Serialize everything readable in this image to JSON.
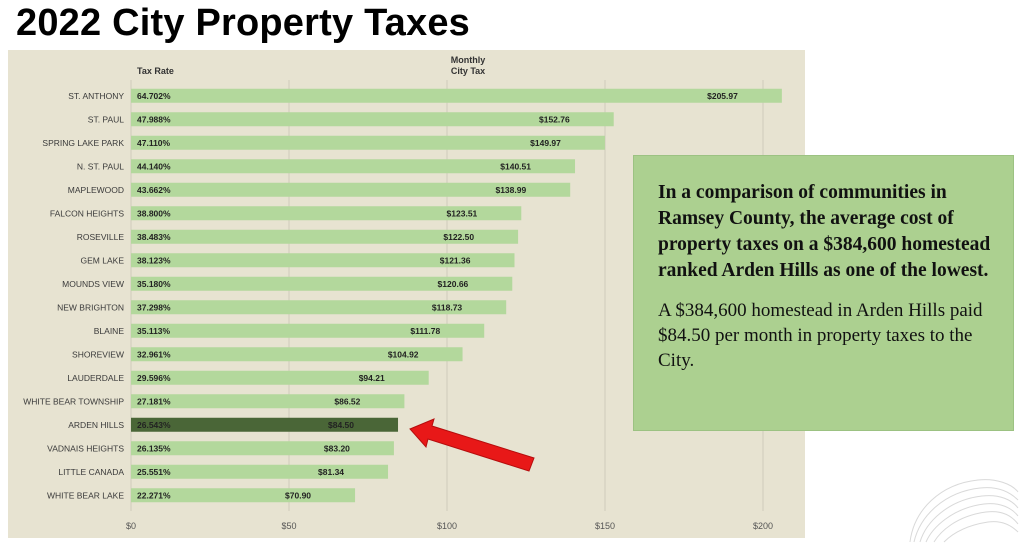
{
  "slide": {
    "title": "2022 City Property Taxes"
  },
  "callout": {
    "heading": "In a comparison of communities in Ramsey County, the average cost of property taxes on a $384,600 homestead ranked Arden Hills as one of the lowest.",
    "body": "A $384,600 homestead in Arden Hills paid $84.50 per month in property taxes to the City."
  },
  "chart_data": {
    "type": "bar",
    "orientation": "horizontal",
    "column_headers": {
      "rate": "Tax Rate",
      "value": "Monthly City Tax"
    },
    "categories": [
      "ST. ANTHONY",
      "ST. PAUL",
      "SPRING LAKE PARK",
      "N. ST. PAUL",
      "MAPLEWOOD",
      "FALCON HEIGHTS",
      "ROSEVILLE",
      "GEM LAKE",
      "MOUNDS VIEW",
      "NEW BRIGHTON",
      "BLAINE",
      "SHOREVIEW",
      "LAUDERDALE",
      "WHITE BEAR TOWNSHIP",
      "ARDEN HILLS",
      "VADNAIS HEIGHTS",
      "LITTLE CANADA",
      "WHITE BEAR LAKE"
    ],
    "tax_rates": [
      "64.702%",
      "47.988%",
      "47.110%",
      "44.140%",
      "43.662%",
      "38.800%",
      "38.483%",
      "38.123%",
      "35.180%",
      "37.298%",
      "35.113%",
      "32.961%",
      "29.596%",
      "27.181%",
      "26.543%",
      "26.135%",
      "25.551%",
      "22.271%"
    ],
    "values": [
      205.97,
      152.76,
      149.97,
      140.51,
      138.99,
      123.51,
      122.5,
      121.36,
      120.66,
      118.73,
      111.78,
      104.92,
      94.21,
      86.52,
      84.5,
      83.2,
      81.34,
      70.9
    ],
    "value_labels": [
      "$205.97",
      "$152.76",
      "$149.97",
      "$140.51",
      "$138.99",
      "$123.51",
      "$122.50",
      "$121.36",
      "$120.66",
      "$118.73",
      "$111.78",
      "$104.92",
      "$94.21",
      "$86.52",
      "$84.50",
      "$83.20",
      "$81.34",
      "$70.90"
    ],
    "highlight": "ARDEN HILLS",
    "xlim": [
      0,
      200
    ],
    "xticks": [
      0,
      50,
      100,
      150,
      200
    ],
    "xtick_labels": [
      "$0",
      "$50",
      "$100",
      "$150",
      "$200"
    ],
    "grid": true,
    "colors": {
      "bar": "#b3d89c",
      "bar_highlight": "#4a6637",
      "background": "#e7e3d1",
      "arrow": "#e81818"
    }
  }
}
